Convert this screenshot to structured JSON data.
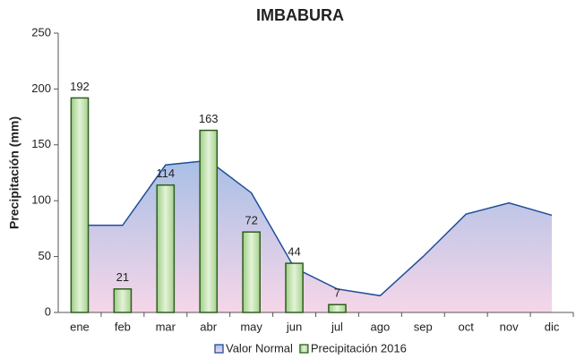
{
  "chart_data": {
    "type": "bar",
    "title": "IMBABURA",
    "y_label": "Precipitación (mm)",
    "categories": [
      "ene",
      "feb",
      "mar",
      "abr",
      "may",
      "jun",
      "jul",
      "ago",
      "sep",
      "oct",
      "nov",
      "dic"
    ],
    "series": [
      {
        "name": "Valor Normal",
        "type": "area",
        "color": "#1f4e99",
        "values": [
          78,
          78,
          132,
          136,
          107,
          40,
          21,
          15,
          50,
          88,
          98,
          87
        ]
      },
      {
        "name": "Precipitación 2016",
        "type": "bar",
        "color": "#2e5e1e",
        "values": [
          192,
          21,
          114,
          163,
          72,
          44,
          7,
          null,
          null,
          null,
          null,
          null
        ]
      }
    ],
    "ylim": [
      0,
      250
    ],
    "yticks": [
      0,
      50,
      100,
      150,
      200,
      250
    ]
  }
}
